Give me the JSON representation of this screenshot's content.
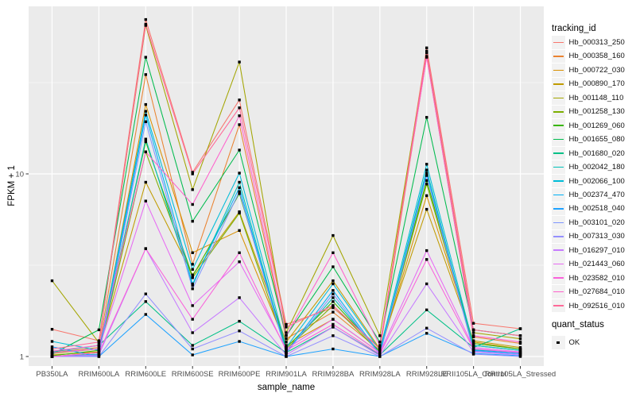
{
  "figure": {
    "background": "#FFFFFF",
    "panel_background": "#EBEBEB",
    "gridline_color": "#FFFFFF",
    "tick_color": "#333333",
    "tick_label_color": "#4D4D4D"
  },
  "axes": {
    "x_title": "sample_name",
    "y_title": "FPKM + 1",
    "y_tick_labels": [
      "1",
      "10"
    ]
  },
  "legend": {
    "tracking_title": "tracking_id",
    "quant_title": "quant_status",
    "quant_ok_label": "OK"
  },
  "chart_data": {
    "type": "line",
    "title": "",
    "xlabel": "sample_name",
    "ylabel": "FPKM + 1",
    "y_scale": "log10",
    "ylim": [
      0.92,
      83
    ],
    "y_major_ticks": [
      1,
      10
    ],
    "y_minor_gridlines": [
      3.1623,
      31.6228
    ],
    "grid": "on",
    "legend_position": "right",
    "point_marker": {
      "shape": "square",
      "color": "#000000",
      "status_label": "OK"
    },
    "categories": [
      "PB350LA",
      "RRIM600LA",
      "RRIM600LE",
      "RRIM600SE",
      "RRIM600PE",
      "RRIM901LA",
      "RRIM928BA",
      "RRIM928LA",
      "RRIM928LE",
      "RRII105LA_Control",
      "RRII105LA_Stressed"
    ],
    "series": [
      {
        "name": "Hb_000313_250",
        "color": "#F8766D",
        "values": [
          1.41,
          1.22,
          70.0,
          10.2,
          25.4,
          1.5,
          1.85,
          1.12,
          49.0,
          1.52,
          1.42
        ]
      },
      {
        "name": "Hb_000358_160",
        "color": "#EA8331",
        "values": [
          1.05,
          1.12,
          35.0,
          3.2,
          18.6,
          1.25,
          1.75,
          1.08,
          44.0,
          1.28,
          1.18
        ]
      },
      {
        "name": "Hb_000722_030",
        "color": "#D89000",
        "values": [
          1.02,
          1.06,
          24.0,
          3.7,
          4.9,
          1.15,
          1.6,
          1.05,
          7.6,
          1.2,
          1.1
        ]
      },
      {
        "name": "Hb_000890_170",
        "color": "#C09B00",
        "values": [
          1.04,
          1.1,
          9.0,
          2.8,
          6.2,
          1.2,
          2.6,
          1.1,
          6.4,
          1.22,
          1.12
        ]
      },
      {
        "name": "Hb_001148_110",
        "color": "#A3A500",
        "values": [
          2.6,
          1.19,
          65.0,
          8.2,
          41.0,
          1.35,
          4.6,
          1.3,
          46.0,
          1.35,
          1.25
        ]
      },
      {
        "name": "Hb_001258_130",
        "color": "#7CAE00",
        "values": [
          1.0,
          1.05,
          13.2,
          2.7,
          6.1,
          1.1,
          1.9,
          1.05,
          8.8,
          1.15,
          1.08
        ]
      },
      {
        "name": "Hb_001269_060",
        "color": "#39B600",
        "values": [
          1.01,
          1.08,
          15.0,
          2.75,
          7.8,
          1.12,
          2.0,
          1.06,
          9.2,
          1.18,
          1.1
        ]
      },
      {
        "name": "Hb_001655_080",
        "color": "#00BB4E",
        "values": [
          1.03,
          1.4,
          43.5,
          5.5,
          13.5,
          1.3,
          3.1,
          1.2,
          20.4,
          1.4,
          1.3
        ]
      },
      {
        "name": "Hb_001680_020",
        "color": "#00C087",
        "values": [
          1.06,
          1.15,
          2.0,
          1.15,
          1.56,
          1.05,
          1.45,
          1.02,
          1.8,
          1.12,
          1.42
        ]
      },
      {
        "name": "Hb_002042_180",
        "color": "#00C0B8",
        "values": [
          1.0,
          1.03,
          15.5,
          2.45,
          9.0,
          1.06,
          2.1,
          1.04,
          10.5,
          1.09,
          1.05
        ]
      },
      {
        "name": "Hb_002066_100",
        "color": "#00BCD8",
        "values": [
          1.21,
          1.08,
          22.0,
          3.0,
          10.1,
          1.12,
          2.5,
          1.08,
          11.3,
          1.15,
          1.08
        ]
      },
      {
        "name": "Hb_002374_470",
        "color": "#00B0F6",
        "values": [
          1.0,
          1.02,
          21.0,
          2.5,
          8.4,
          1.05,
          2.3,
          1.03,
          10.1,
          1.08,
          1.04
        ]
      },
      {
        "name": "Hb_002518_040",
        "color": "#1FA2FF",
        "values": [
          1.13,
          1.0,
          1.7,
          1.02,
          1.21,
          1.0,
          1.1,
          1.0,
          1.34,
          1.04,
          1.01
        ]
      },
      {
        "name": "Hb_003101_020",
        "color": "#7E96FF",
        "values": [
          1.0,
          1.01,
          19.3,
          2.35,
          8.0,
          1.04,
          2.2,
          1.02,
          9.8,
          1.07,
          1.03
        ]
      },
      {
        "name": "Hb_007313_030",
        "color": "#9590FF",
        "values": [
          1.0,
          1.0,
          2.2,
          1.1,
          1.38,
          1.0,
          1.3,
          1.0,
          1.43,
          1.03,
          1.0
        ]
      },
      {
        "name": "Hb_016297_010",
        "color": "#C77CFF",
        "values": [
          1.0,
          1.02,
          3.9,
          1.35,
          2.1,
          1.02,
          1.45,
          1.01,
          2.5,
          1.06,
          1.02
        ]
      },
      {
        "name": "Hb_021443_060",
        "color": "#E76BF3",
        "values": [
          1.05,
          1.1,
          7.1,
          1.9,
          3.3,
          1.1,
          1.6,
          1.05,
          3.8,
          1.12,
          1.06
        ]
      },
      {
        "name": "Hb_023582_010",
        "color": "#FA62DB",
        "values": [
          1.0,
          1.05,
          3.9,
          1.6,
          3.7,
          1.08,
          1.5,
          1.03,
          3.4,
          1.1,
          1.05
        ]
      },
      {
        "name": "Hb_027684_010",
        "color": "#FF61CC",
        "values": [
          1.07,
          1.15,
          13.2,
          6.8,
          20.8,
          1.3,
          3.7,
          1.15,
          43.5,
          1.3,
          1.2
        ]
      },
      {
        "name": "Hb_092516_010",
        "color": "#FF6A98",
        "values": [
          1.1,
          1.2,
          66.0,
          10.0,
          23.0,
          1.45,
          1.9,
          1.1,
          47.0,
          1.4,
          1.3
        ]
      }
    ]
  }
}
